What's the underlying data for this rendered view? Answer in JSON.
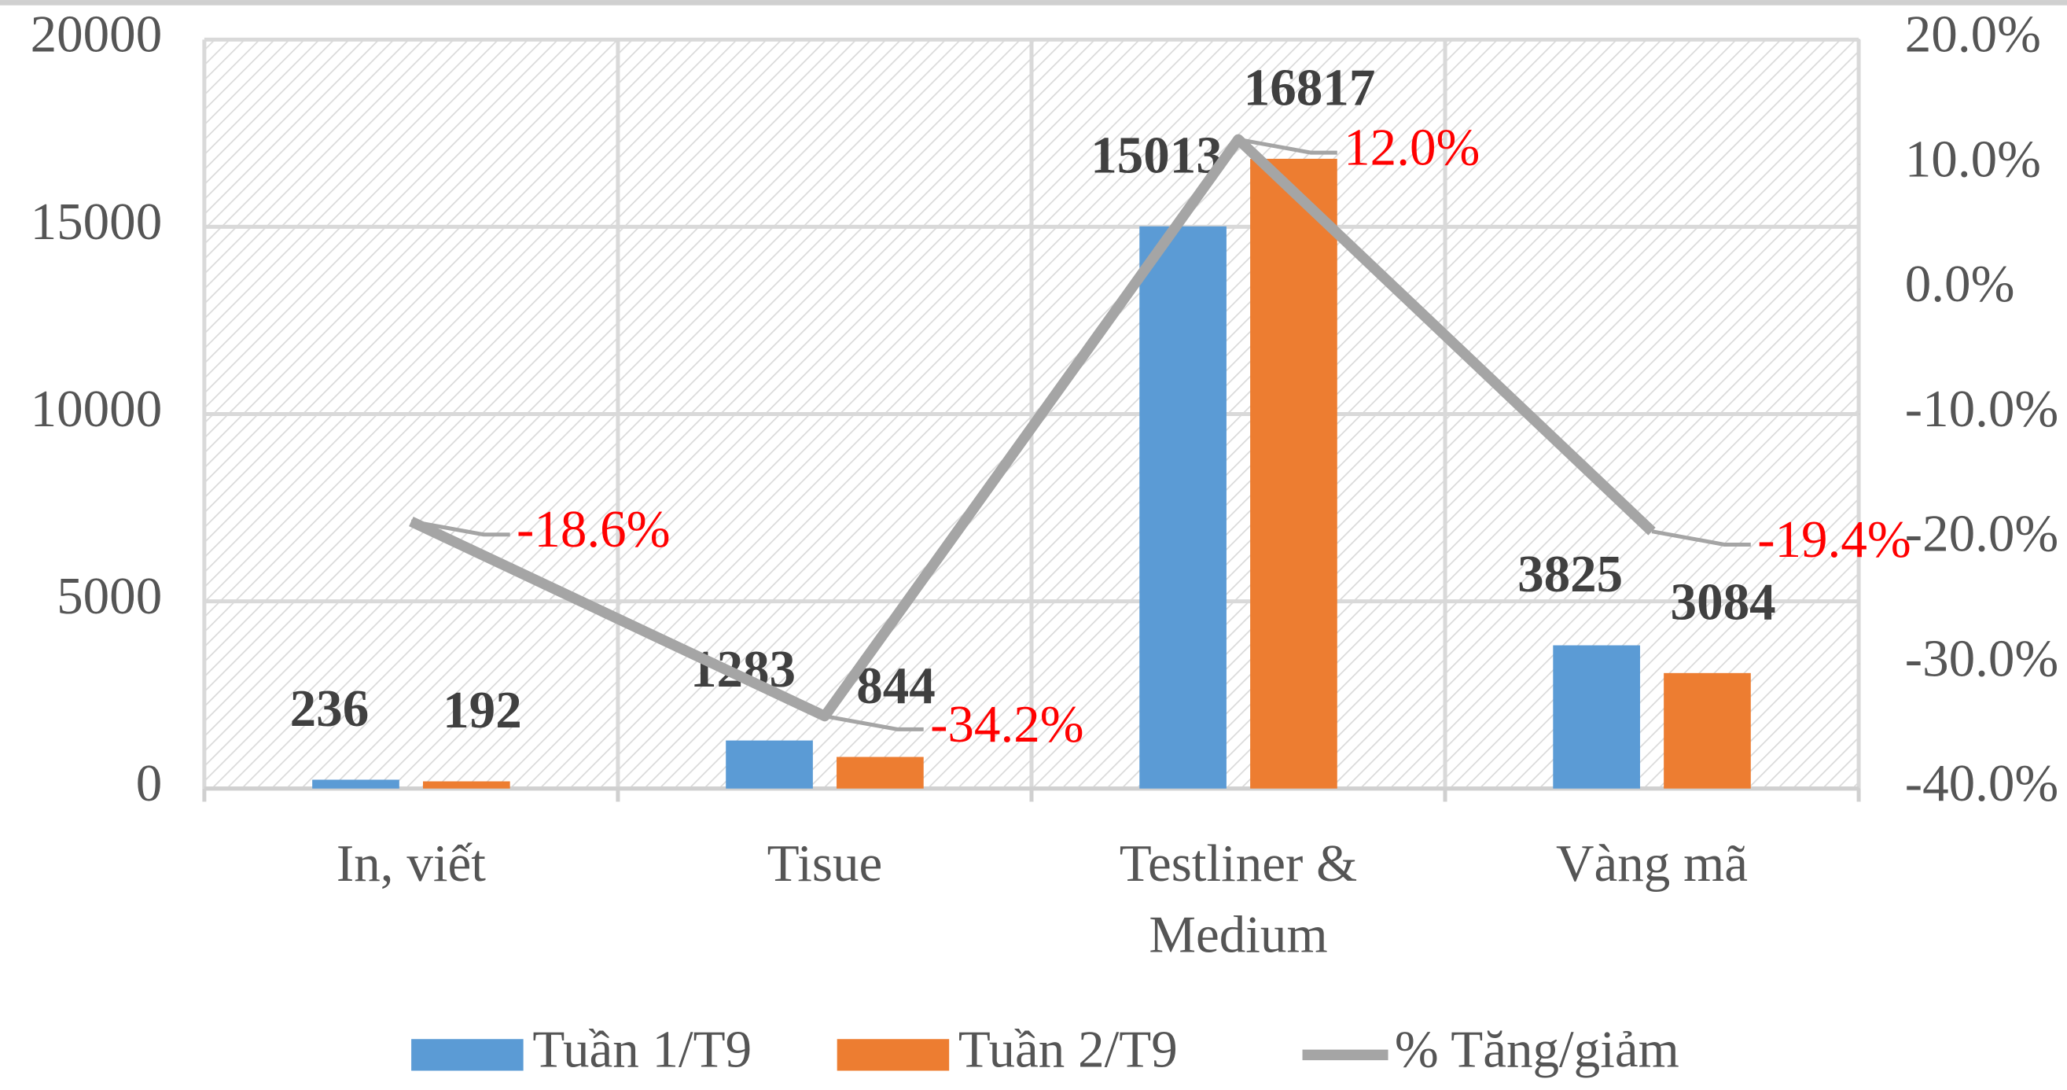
{
  "chart_data": {
    "type": "bar-line",
    "categories": [
      "In, viết",
      "Tisue",
      "Testliner & Medium",
      "Vàng mã"
    ],
    "series": [
      {
        "name": "Tuần 1/T9",
        "color": "#5b9bd5",
        "values": [
          236,
          1283,
          15013,
          3825
        ]
      },
      {
        "name": "Tuần 2/T9",
        "color": "#ed7d31",
        "values": [
          192,
          844,
          16817,
          3084
        ]
      },
      {
        "name": "% Tăng/giảm",
        "color": "#a5a5a5",
        "type": "line",
        "axis": "y2",
        "values": [
          -18.6,
          -34.2,
          12.0,
          -19.4
        ],
        "value_labels": [
          "-18.6%",
          "-34.2%",
          "12.0%",
          "-19.4%"
        ]
      }
    ],
    "ylim": [
      0,
      20000
    ],
    "yticks": [
      0,
      5000,
      10000,
      15000,
      20000
    ],
    "y2lim": [
      -40,
      20
    ],
    "y2ticks": [
      {
        "value": -40,
        "label": "-40.0%"
      },
      {
        "value": -30,
        "label": "-30.0%"
      },
      {
        "value": -20,
        "label": "-20.0%"
      },
      {
        "value": -10,
        "label": "-10.0%"
      },
      {
        "value": 0,
        "label": "0.0%"
      },
      {
        "value": 10,
        "label": "10.0%"
      },
      {
        "value": 20,
        "label": "20.0%"
      }
    ],
    "grid": true,
    "legend": "bottom"
  }
}
